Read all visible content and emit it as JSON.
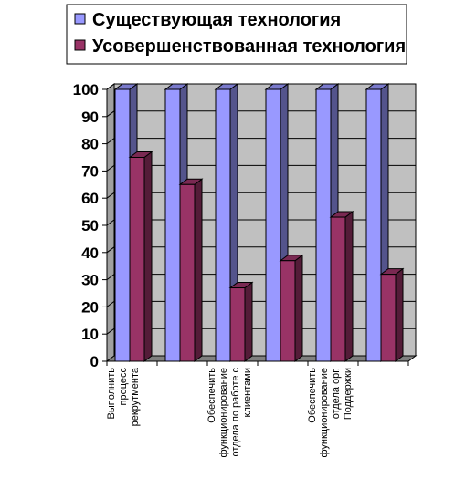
{
  "chart_data": {
    "type": "bar",
    "title": "",
    "xlabel": "",
    "ylabel": "",
    "ylim": [
      0,
      100
    ],
    "yticks": [
      0,
      10,
      20,
      30,
      40,
      50,
      60,
      70,
      80,
      90,
      100
    ],
    "grid": true,
    "legend_position": "top",
    "categories": [
      [
        "Выполнить",
        "процесс",
        "рекрутмента"
      ],
      [],
      [
        "Обеспечить",
        "функционирование",
        "отдела по работе с",
        "клиентами"
      ],
      [],
      [
        "Обеспечить",
        "функционирование",
        "отдела орг.",
        "Поддержки"
      ],
      []
    ],
    "series": [
      {
        "name": "Существующая технология",
        "color": "#9999ff",
        "values": [
          100,
          100,
          100,
          100,
          100,
          100
        ]
      },
      {
        "name": "Усовершенствованная технология",
        "color": "#993366",
        "values": [
          75,
          65,
          27,
          37,
          53,
          32
        ]
      }
    ]
  }
}
